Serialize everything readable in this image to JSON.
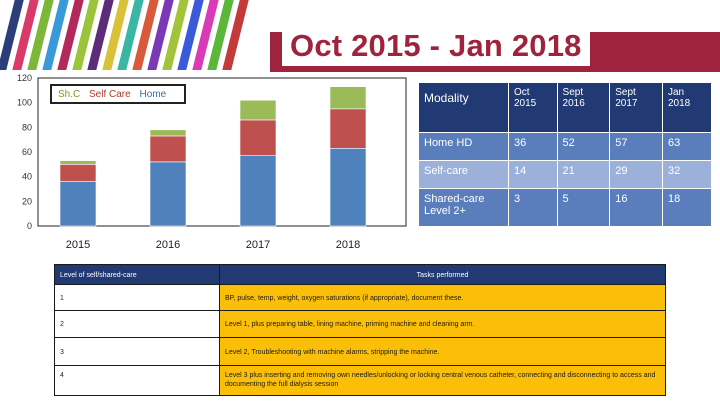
{
  "header": {
    "title": "Oct 2015 - Jan 2018",
    "accent_color": "#a0233d",
    "stripe_colors": [
      "#2c3e7a",
      "#d93a6a",
      "#7db73a",
      "#3a9ad9",
      "#b32a5a",
      "#9bc43a",
      "#5b2c7a",
      "#d9c23a",
      "#3ab7a3",
      "#d95a3a",
      "#7a3ab7",
      "#a3c43a",
      "#3a5ad9",
      "#d93ab7",
      "#5ab73a",
      "#c43a3a"
    ]
  },
  "chart_data": {
    "type": "bar",
    "stacked": true,
    "categories": [
      "2015",
      "2016",
      "2017",
      "2018"
    ],
    "series": [
      {
        "name": "Home",
        "color": "#4f81bd",
        "values": [
          36,
          52,
          57,
          63
        ]
      },
      {
        "name": "Self Care",
        "color": "#c0504d",
        "values": [
          14,
          21,
          29,
          32
        ]
      },
      {
        "name": "Sh.C",
        "color": "#9bbb59",
        "values": [
          3,
          5,
          16,
          18
        ]
      }
    ],
    "ylim": [
      0,
      120
    ],
    "yticks": [
      "0",
      "20",
      "40",
      "60",
      "80",
      "100",
      "120"
    ],
    "legend": {
      "position": "top-left",
      "labels": [
        "Sh.C",
        "Self Care",
        "Home"
      ]
    },
    "grid": false
  },
  "modality_table": {
    "header": [
      "Modality",
      "Oct 2015",
      "Sept 2016",
      "Sept 2017",
      "Jan 2018"
    ],
    "rows": [
      [
        "Home HD",
        "36",
        "52",
        "57",
        "63"
      ],
      [
        "Self-care",
        "14",
        "21",
        "29",
        "32"
      ],
      [
        "Shared-care Level 2+",
        "3",
        "5",
        "16",
        "18"
      ]
    ]
  },
  "tasks_table": {
    "header": [
      "Level of self/shared-care",
      "Tasks performed"
    ],
    "rows": [
      [
        "1",
        "BP, pulse, temp, weight, oxygen saturations (if appropriate), document these."
      ],
      [
        "2",
        "Level 1, plus preparing table, lining machine, priming machine and cleaning arm."
      ],
      [
        "3",
        "Level 2, Troubleshooting with machine alarms, stripping the machine."
      ],
      [
        "4",
        "Level 3 plus inserting and removing own needles/unlocking or locking central venous catheter, connecting and disconnecting to access and documenting the full dialysis session"
      ]
    ]
  }
}
